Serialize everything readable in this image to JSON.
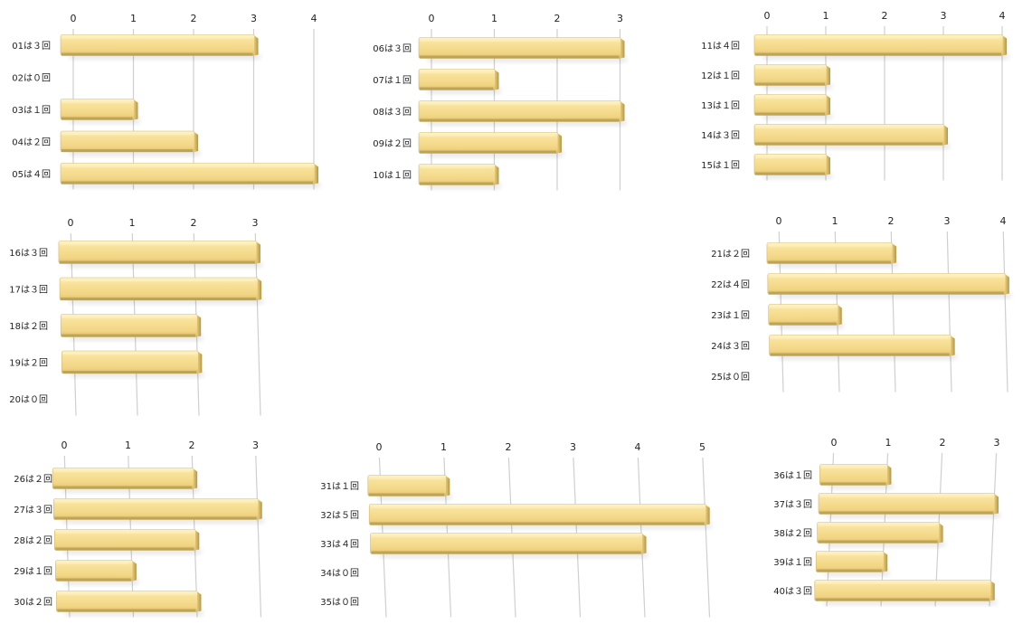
{
  "colors": {
    "bar": "#f5dc8c",
    "bar_top": "#fdf0bc",
    "bar_side": "#c8aa5a",
    "bar_bottom": "#a48b43",
    "grid": "#cfcfcf",
    "text": "#222222"
  },
  "chart_data": [
    {
      "type": "bar",
      "orientation": "horizontal",
      "title": "",
      "categories": [
        "01は３回",
        "02は０回",
        "03は１回",
        "04は２回",
        "05は４回"
      ],
      "values": [
        3,
        0,
        1,
        2,
        4
      ],
      "xlim": [
        0,
        4
      ],
      "ticks": [
        "0",
        "1",
        "2",
        "3",
        "4"
      ]
    },
    {
      "type": "bar",
      "orientation": "horizontal",
      "title": "",
      "categories": [
        "06は３回",
        "07は１回",
        "08は３回",
        "09は２回",
        "10は１回"
      ],
      "values": [
        3,
        1,
        3,
        2,
        1
      ],
      "xlim": [
        0,
        3
      ],
      "ticks": [
        "0",
        "1",
        "2",
        "3"
      ]
    },
    {
      "type": "bar",
      "orientation": "horizontal",
      "title": "",
      "categories": [
        "11は４回",
        "12は１回",
        "13は１回",
        "14は３回",
        "15は１回"
      ],
      "values": [
        4,
        1,
        1,
        3,
        1
      ],
      "xlim": [
        0,
        4
      ],
      "ticks": [
        "0",
        "1",
        "2",
        "3",
        "4"
      ]
    },
    {
      "type": "bar",
      "orientation": "horizontal",
      "title": "",
      "categories": [
        "16は３回",
        "17は３回",
        "18は２回",
        "19は２回",
        "20は０回"
      ],
      "values": [
        3,
        3,
        2,
        2,
        0
      ],
      "xlim": [
        0,
        3
      ],
      "ticks": [
        "0",
        "1",
        "2",
        "3"
      ]
    },
    {
      "type": "bar",
      "orientation": "horizontal",
      "title": "",
      "categories": [
        "21は２回",
        "22は４回",
        "23は１回",
        "24は３回",
        "25は０回"
      ],
      "values": [
        2,
        4,
        1,
        3,
        0
      ],
      "xlim": [
        0,
        4
      ],
      "ticks": [
        "0",
        "1",
        "2",
        "3",
        "4"
      ]
    },
    {
      "type": "bar",
      "orientation": "horizontal",
      "title": "",
      "categories": [
        "26は２回",
        "27は３回",
        "28は２回",
        "29は１回",
        "30は２回"
      ],
      "values": [
        2,
        3,
        2,
        1,
        2
      ],
      "xlim": [
        0,
        3
      ],
      "ticks": [
        "0",
        "1",
        "2",
        "3"
      ]
    },
    {
      "type": "bar",
      "orientation": "horizontal",
      "title": "",
      "categories": [
        "31は１回",
        "32は５回",
        "33は４回",
        "34は０回",
        "35は０回"
      ],
      "values": [
        1,
        5,
        4,
        0,
        0
      ],
      "xlim": [
        0,
        5
      ],
      "ticks": [
        "0",
        "1",
        "2",
        "3",
        "4",
        "5"
      ]
    },
    {
      "type": "bar",
      "orientation": "horizontal",
      "title": "",
      "categories": [
        "36は１回",
        "37は３回",
        "38は２回",
        "39は１回",
        "40は３回"
      ],
      "values": [
        1,
        3,
        2,
        1,
        3
      ],
      "xlim": [
        0,
        3
      ],
      "ticks": [
        "0",
        "1",
        "2",
        "3"
      ]
    }
  ]
}
